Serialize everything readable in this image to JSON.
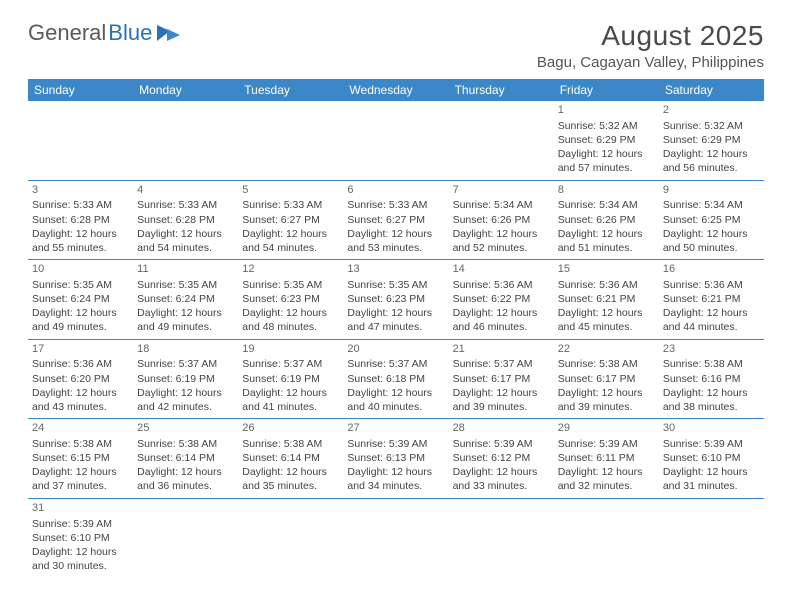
{
  "logo": {
    "text1": "General",
    "text2": "Blue"
  },
  "title": "August 2025",
  "location": "Bagu, Cagayan Valley, Philippines",
  "colors": {
    "header_bg": "#3b87c8",
    "header_text": "#ffffff",
    "border": "#3b87c8",
    "logo_gray": "#5a5a5a",
    "logo_blue": "#2a72b5"
  },
  "weekdays": [
    "Sunday",
    "Monday",
    "Tuesday",
    "Wednesday",
    "Thursday",
    "Friday",
    "Saturday"
  ],
  "weeks": [
    [
      null,
      null,
      null,
      null,
      null,
      {
        "n": "1",
        "sr": "5:32 AM",
        "ss": "6:29 PM",
        "dl": "12 hours and 57 minutes."
      },
      {
        "n": "2",
        "sr": "5:32 AM",
        "ss": "6:29 PM",
        "dl": "12 hours and 56 minutes."
      }
    ],
    [
      {
        "n": "3",
        "sr": "5:33 AM",
        "ss": "6:28 PM",
        "dl": "12 hours and 55 minutes."
      },
      {
        "n": "4",
        "sr": "5:33 AM",
        "ss": "6:28 PM",
        "dl": "12 hours and 54 minutes."
      },
      {
        "n": "5",
        "sr": "5:33 AM",
        "ss": "6:27 PM",
        "dl": "12 hours and 54 minutes."
      },
      {
        "n": "6",
        "sr": "5:33 AM",
        "ss": "6:27 PM",
        "dl": "12 hours and 53 minutes."
      },
      {
        "n": "7",
        "sr": "5:34 AM",
        "ss": "6:26 PM",
        "dl": "12 hours and 52 minutes."
      },
      {
        "n": "8",
        "sr": "5:34 AM",
        "ss": "6:26 PM",
        "dl": "12 hours and 51 minutes."
      },
      {
        "n": "9",
        "sr": "5:34 AM",
        "ss": "6:25 PM",
        "dl": "12 hours and 50 minutes."
      }
    ],
    [
      {
        "n": "10",
        "sr": "5:35 AM",
        "ss": "6:24 PM",
        "dl": "12 hours and 49 minutes."
      },
      {
        "n": "11",
        "sr": "5:35 AM",
        "ss": "6:24 PM",
        "dl": "12 hours and 49 minutes."
      },
      {
        "n": "12",
        "sr": "5:35 AM",
        "ss": "6:23 PM",
        "dl": "12 hours and 48 minutes."
      },
      {
        "n": "13",
        "sr": "5:35 AM",
        "ss": "6:23 PM",
        "dl": "12 hours and 47 minutes."
      },
      {
        "n": "14",
        "sr": "5:36 AM",
        "ss": "6:22 PM",
        "dl": "12 hours and 46 minutes."
      },
      {
        "n": "15",
        "sr": "5:36 AM",
        "ss": "6:21 PM",
        "dl": "12 hours and 45 minutes."
      },
      {
        "n": "16",
        "sr": "5:36 AM",
        "ss": "6:21 PM",
        "dl": "12 hours and 44 minutes."
      }
    ],
    [
      {
        "n": "17",
        "sr": "5:36 AM",
        "ss": "6:20 PM",
        "dl": "12 hours and 43 minutes."
      },
      {
        "n": "18",
        "sr": "5:37 AM",
        "ss": "6:19 PM",
        "dl": "12 hours and 42 minutes."
      },
      {
        "n": "19",
        "sr": "5:37 AM",
        "ss": "6:19 PM",
        "dl": "12 hours and 41 minutes."
      },
      {
        "n": "20",
        "sr": "5:37 AM",
        "ss": "6:18 PM",
        "dl": "12 hours and 40 minutes."
      },
      {
        "n": "21",
        "sr": "5:37 AM",
        "ss": "6:17 PM",
        "dl": "12 hours and 39 minutes."
      },
      {
        "n": "22",
        "sr": "5:38 AM",
        "ss": "6:17 PM",
        "dl": "12 hours and 39 minutes."
      },
      {
        "n": "23",
        "sr": "5:38 AM",
        "ss": "6:16 PM",
        "dl": "12 hours and 38 minutes."
      }
    ],
    [
      {
        "n": "24",
        "sr": "5:38 AM",
        "ss": "6:15 PM",
        "dl": "12 hours and 37 minutes."
      },
      {
        "n": "25",
        "sr": "5:38 AM",
        "ss": "6:14 PM",
        "dl": "12 hours and 36 minutes."
      },
      {
        "n": "26",
        "sr": "5:38 AM",
        "ss": "6:14 PM",
        "dl": "12 hours and 35 minutes."
      },
      {
        "n": "27",
        "sr": "5:39 AM",
        "ss": "6:13 PM",
        "dl": "12 hours and 34 minutes."
      },
      {
        "n": "28",
        "sr": "5:39 AM",
        "ss": "6:12 PM",
        "dl": "12 hours and 33 minutes."
      },
      {
        "n": "29",
        "sr": "5:39 AM",
        "ss": "6:11 PM",
        "dl": "12 hours and 32 minutes."
      },
      {
        "n": "30",
        "sr": "5:39 AM",
        "ss": "6:10 PM",
        "dl": "12 hours and 31 minutes."
      }
    ],
    [
      {
        "n": "31",
        "sr": "5:39 AM",
        "ss": "6:10 PM",
        "dl": "12 hours and 30 minutes."
      },
      null,
      null,
      null,
      null,
      null,
      null
    ]
  ],
  "labels": {
    "sunrise": "Sunrise:",
    "sunset": "Sunset:",
    "daylight": "Daylight:"
  }
}
